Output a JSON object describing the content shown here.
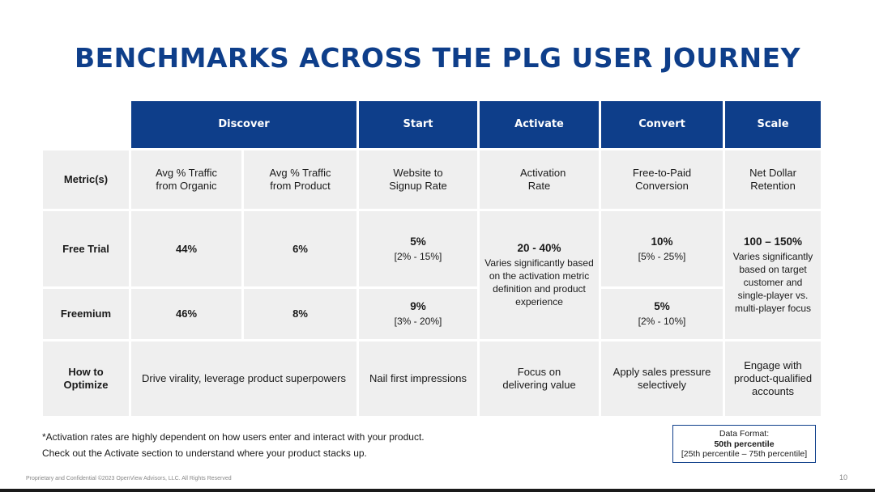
{
  "title": "BENCHMARKS ACROSS THE PLG USER JOURNEY",
  "headers": {
    "discover": "Discover",
    "start": "Start",
    "activate": "Activate",
    "convert": "Convert",
    "scale": "Scale"
  },
  "rows": {
    "metric": {
      "label": "Metric(s)",
      "organic": "Avg % Traffic from Organic",
      "product": "Avg % Traffic from Product",
      "signup": "Website to Signup Rate",
      "activation": "Activation Rate",
      "conversion": "Free-to-Paid Conversion",
      "ndr": "Net Dollar Retention"
    },
    "trial": {
      "label": "Free Trial",
      "organic": "44%",
      "product": "6%",
      "signup_value": "5%",
      "signup_range": "[2% - 15%]",
      "conversion_value": "10%",
      "conversion_range": "[5% - 25%]"
    },
    "freemium": {
      "label": "Freemium",
      "organic": "46%",
      "product": "8%",
      "signup_value": "9%",
      "signup_range": "[3% - 20%]",
      "conversion_value": "5%",
      "conversion_range": "[2% - 10%]"
    },
    "activation_shared": {
      "value": "20 - 40%",
      "note": "Varies significantly based on the activation metric definition and product experience"
    },
    "ndr_shared": {
      "value": "100 – 150%",
      "note": "Varies significantly based on target customer and single-player vs. multi-player focus"
    },
    "optimize": {
      "label": "How to Optimize",
      "discover": "Drive virality, leverage product superpowers",
      "start": "Nail first impressions",
      "activate": "Focus on delivering value",
      "convert": "Apply sales pressure selectively",
      "scale": "Engage with product-qualified accounts"
    }
  },
  "footnotes": {
    "line1": "*Activation rates are highly dependent on how users enter and interact with your product.",
    "line2": "Check out the Activate section to understand where your product stacks up."
  },
  "legend": {
    "title": "Data Format:",
    "bold": "50th percentile",
    "range": "[25th percentile – 75th percentile]"
  },
  "footer": {
    "copyright": "Proprietary and Confidential ©2023 OpenView Advisors, LLC. All Rights Reserved",
    "page": "10"
  }
}
